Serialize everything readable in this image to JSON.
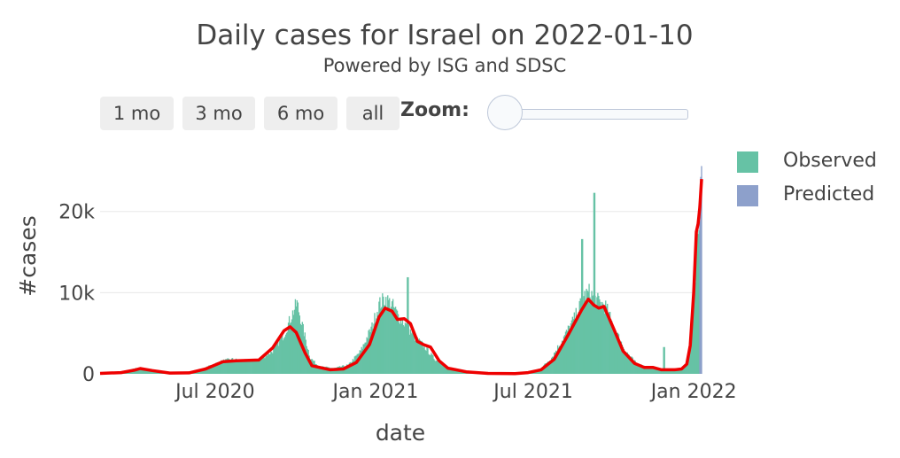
{
  "header": {
    "title": "Daily cases for Israel on 2022-01-10",
    "subtitle": "Powered by ISG and SDSC"
  },
  "controls": {
    "range_buttons": [
      {
        "label": "1 mo"
      },
      {
        "label": "3 mo"
      },
      {
        "label": "6 mo"
      },
      {
        "label": "all"
      }
    ],
    "zoom_label": "Zoom:",
    "zoom_level": 0
  },
  "legend": [
    {
      "label": "Observed",
      "color": "#66c2a5"
    },
    {
      "label": "Predicted",
      "color": "#8da0cb"
    }
  ],
  "chart_data": {
    "type": "bar",
    "title": "Daily cases for Israel on 2022-01-10",
    "subtitle": "Powered by ISG and SDSC",
    "xlabel": "date",
    "ylabel": "#cases",
    "x_ticks": [
      "Jul 2020",
      "Jan 2021",
      "Jul 2021",
      "Jan 2022"
    ],
    "y_ticks": [
      {
        "value": 0,
        "label": "0"
      },
      {
        "value": 10000,
        "label": "10k"
      },
      {
        "value": 20000,
        "label": "20k"
      }
    ],
    "xlim": [
      "2020-02-20",
      "2022-01-10"
    ],
    "ylim": [
      0,
      27500
    ],
    "grid": "y",
    "legend_position": "top-right",
    "observed_color": "#66c2a5",
    "predicted_color": "#8da0cb",
    "trend_color": "#ee0000",
    "series": [
      {
        "name": "Observed",
        "points": [
          [
            "2020-02-20",
            0
          ],
          [
            "2020-03-10",
            100
          ],
          [
            "2020-03-25",
            450
          ],
          [
            "2020-04-02",
            700
          ],
          [
            "2020-04-10",
            550
          ],
          [
            "2020-04-25",
            300
          ],
          [
            "2020-05-15",
            60
          ],
          [
            "2020-06-01",
            100
          ],
          [
            "2020-06-15",
            500
          ],
          [
            "2020-06-25",
            1000
          ],
          [
            "2020-07-10",
            1600
          ],
          [
            "2020-07-20",
            1800
          ],
          [
            "2020-08-01",
            1600
          ],
          [
            "2020-08-20",
            1700
          ],
          [
            "2020-09-05",
            2800
          ],
          [
            "2020-09-18",
            4800
          ],
          [
            "2020-09-28",
            7500
          ],
          [
            "2020-10-03",
            8700
          ],
          [
            "2020-10-10",
            5500
          ],
          [
            "2020-10-18",
            2000
          ],
          [
            "2020-10-28",
            900
          ],
          [
            "2020-11-15",
            700
          ],
          [
            "2020-12-01",
            1100
          ],
          [
            "2020-12-15",
            2800
          ],
          [
            "2020-12-28",
            5800
          ],
          [
            "2021-01-05",
            8500
          ],
          [
            "2021-01-12",
            9300
          ],
          [
            "2021-01-20",
            8500
          ],
          [
            "2021-01-28",
            7000
          ],
          [
            "2021-02-05",
            6000
          ],
          [
            "2021-02-15",
            4500
          ],
          [
            "2021-02-25",
            3500
          ],
          [
            "2021-03-10",
            1800
          ],
          [
            "2021-03-25",
            800
          ],
          [
            "2021-04-15",
            250
          ],
          [
            "2021-05-15",
            40
          ],
          [
            "2021-06-10",
            30
          ],
          [
            "2021-06-25",
            150
          ],
          [
            "2021-07-10",
            700
          ],
          [
            "2021-07-22",
            2000
          ],
          [
            "2021-08-05",
            4500
          ],
          [
            "2021-08-18",
            7000
          ],
          [
            "2021-08-28",
            9500
          ],
          [
            "2021-09-03",
            10000
          ],
          [
            "2021-09-12",
            9000
          ],
          [
            "2021-09-22",
            8300
          ],
          [
            "2021-10-01",
            5800
          ],
          [
            "2021-10-15",
            2800
          ],
          [
            "2021-10-28",
            1200
          ],
          [
            "2021-11-15",
            700
          ],
          [
            "2021-11-30",
            500
          ],
          [
            "2021-12-12",
            500
          ],
          [
            "2021-12-20",
            800
          ],
          [
            "2021-12-26",
            1800
          ],
          [
            "2021-12-30",
            5000
          ],
          [
            "2022-01-02",
            10500
          ],
          [
            "2022-01-04",
            15000
          ],
          [
            "2022-01-06",
            17500
          ],
          [
            "2022-01-07",
            19000
          ]
        ]
      },
      {
        "name": "Predicted",
        "points": [
          [
            "2022-01-07",
            19500
          ],
          [
            "2022-01-08",
            21000
          ],
          [
            "2022-01-09",
            23500
          ],
          [
            "2022-01-10",
            26000
          ]
        ]
      }
    ],
    "trend": [
      [
        "2020-02-20",
        50
      ],
      [
        "2020-03-15",
        150
      ],
      [
        "2020-03-30",
        450
      ],
      [
        "2020-04-06",
        650
      ],
      [
        "2020-04-20",
        400
      ],
      [
        "2020-05-10",
        100
      ],
      [
        "2020-06-01",
        120
      ],
      [
        "2020-06-20",
        600
      ],
      [
        "2020-07-10",
        1500
      ],
      [
        "2020-07-25",
        1600
      ],
      [
        "2020-08-20",
        1700
      ],
      [
        "2020-09-05",
        3200
      ],
      [
        "2020-09-18",
        5300
      ],
      [
        "2020-09-25",
        5800
      ],
      [
        "2020-10-02",
        5100
      ],
      [
        "2020-10-12",
        2600
      ],
      [
        "2020-10-20",
        1000
      ],
      [
        "2020-11-10",
        500
      ],
      [
        "2020-11-25",
        600
      ],
      [
        "2020-12-10",
        1400
      ],
      [
        "2020-12-25",
        3600
      ],
      [
        "2021-01-05",
        7000
      ],
      [
        "2021-01-12",
        8100
      ],
      [
        "2021-01-20",
        7700
      ],
      [
        "2021-01-26",
        6700
      ],
      [
        "2021-02-03",
        6800
      ],
      [
        "2021-02-10",
        6200
      ],
      [
        "2021-02-18",
        4000
      ],
      [
        "2021-02-25",
        3600
      ],
      [
        "2021-03-05",
        3300
      ],
      [
        "2021-03-15",
        1600
      ],
      [
        "2021-03-25",
        700
      ],
      [
        "2021-04-15",
        250
      ],
      [
        "2021-05-10",
        60
      ],
      [
        "2021-06-10",
        30
      ],
      [
        "2021-06-25",
        150
      ],
      [
        "2021-07-10",
        500
      ],
      [
        "2021-07-25",
        1800
      ],
      [
        "2021-08-10",
        4800
      ],
      [
        "2021-08-25",
        7800
      ],
      [
        "2021-09-02",
        9200
      ],
      [
        "2021-09-08",
        8500
      ],
      [
        "2021-09-14",
        8100
      ],
      [
        "2021-09-20",
        8300
      ],
      [
        "2021-10-01",
        5600
      ],
      [
        "2021-10-12",
        2800
      ],
      [
        "2021-10-25",
        1300
      ],
      [
        "2021-11-05",
        800
      ],
      [
        "2021-11-15",
        800
      ],
      [
        "2021-11-25",
        500
      ],
      [
        "2021-12-10",
        500
      ],
      [
        "2021-12-18",
        600
      ],
      [
        "2021-12-24",
        1200
      ],
      [
        "2021-12-28",
        3500
      ],
      [
        "2022-01-01",
        10000
      ],
      [
        "2022-01-04",
        17500
      ],
      [
        "2022-01-06",
        18500
      ],
      [
        "2022-01-08",
        20500
      ],
      [
        "2022-01-10",
        24000
      ]
    ],
    "spikes": [
      [
        "2021-09-09",
        22300
      ],
      [
        "2021-08-26",
        16600
      ],
      [
        "2021-02-07",
        11900
      ],
      [
        "2021-11-28",
        3300
      ]
    ]
  }
}
